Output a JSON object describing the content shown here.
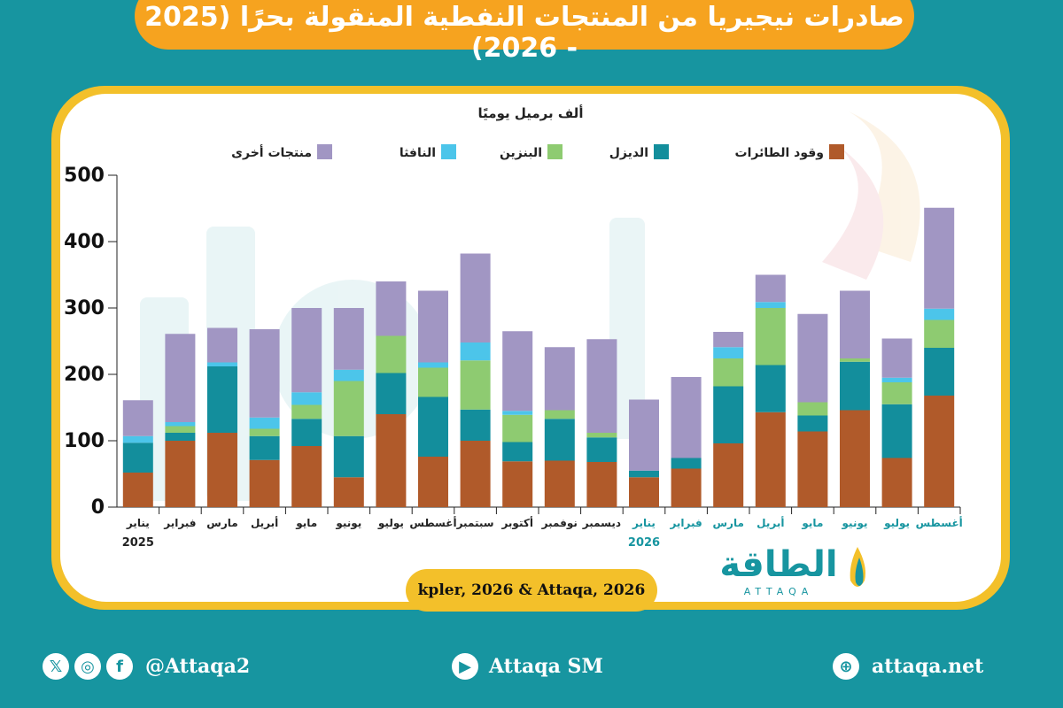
{
  "header": {
    "title": "صادرات نيجيريا من المنتجات النفطية المنقولة بحرًا (2025 - 2026)"
  },
  "chart_data": {
    "type": "bar",
    "stacked": true,
    "unit_label": "ألف برميل يوميًا",
    "ylim": [
      0,
      500
    ],
    "yticks": [
      "0",
      "100",
      "200",
      "300",
      "400",
      "500"
    ],
    "categories": [
      "يناير",
      "فبراير",
      "مارس",
      "أبريل",
      "مايو",
      "يونيو",
      "يوليو",
      "أغسطس",
      "سبتمبر",
      "أكتوبر",
      "نوفمبر",
      "ديسمبر",
      "يناير",
      "فبراير",
      "مارس",
      "أبريل",
      "مايو",
      "يونيو",
      "يوليو",
      "أغسطس"
    ],
    "category_years": [
      "2025",
      "",
      "",
      "",
      "",
      "",
      "",
      "",
      "",
      "",
      "",
      "",
      "2026",
      "",
      "",
      "",
      "",
      "",
      "",
      ""
    ],
    "highlight_from_index": 12,
    "legend_position": "top",
    "series": [
      {
        "name": "وقود الطائرات",
        "color": "#b05a2a",
        "values": [
          52,
          100,
          112,
          71,
          92,
          45,
          140,
          76,
          100,
          69,
          70,
          68,
          45,
          58,
          96,
          143,
          114,
          146,
          74,
          168
        ]
      },
      {
        "name": "الديزل",
        "color": "#138e9c",
        "values": [
          45,
          12,
          100,
          36,
          41,
          62,
          62,
          90,
          47,
          29,
          63,
          37,
          10,
          16,
          86,
          71,
          24,
          73,
          81,
          72
        ]
      },
      {
        "name": "البنزين",
        "color": "#8ecb71",
        "values": [
          0,
          10,
          0,
          11,
          21,
          83,
          56,
          44,
          74,
          41,
          13,
          7,
          0,
          0,
          42,
          86,
          20,
          5,
          33,
          42
        ]
      },
      {
        "name": "النافثا",
        "color": "#4cc5ea",
        "values": [
          10,
          6,
          6,
          17,
          19,
          17,
          0,
          8,
          27,
          6,
          0,
          0,
          0,
          0,
          17,
          9,
          0,
          0,
          7,
          17
        ]
      },
      {
        "name": "منتجات أخرى",
        "color": "#a196c3",
        "values": [
          54,
          133,
          52,
          133,
          127,
          93,
          82,
          108,
          134,
          120,
          95,
          141,
          107,
          122,
          23,
          41,
          133,
          102,
          59,
          152
        ]
      }
    ]
  },
  "source": {
    "text": "kpler, 2026 & Attaqa, 2026"
  },
  "brand": {
    "name": "الطاقة",
    "latin": "ATTAQA"
  },
  "footer": {
    "social_handle": "@Attaqa2",
    "youtube": "Attaqa SM",
    "website": "attaqa.net"
  },
  "colors": {
    "accent": "#1795a0",
    "title_bg": "#f6a31f",
    "frame": "#f3c02a",
    "highlight_label": "#1795a0"
  }
}
